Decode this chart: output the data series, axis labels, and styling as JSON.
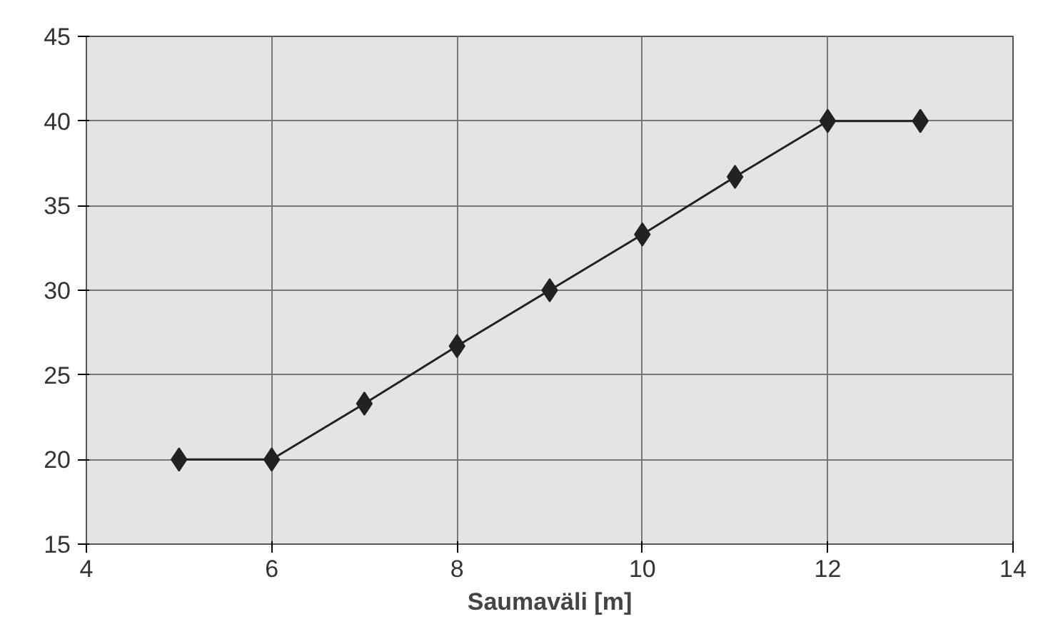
{
  "chart_data": {
    "type": "line",
    "xlabel": "Saumaväli [m]",
    "x": [
      5,
      6,
      7,
      8,
      9,
      10,
      11,
      12,
      13
    ],
    "series": [
      {
        "color": "#222222",
        "values": [
          20,
          20,
          23.3,
          26.7,
          30,
          33.3,
          36.7,
          40,
          40
        ]
      }
    ],
    "xlim": [
      4,
      14
    ],
    "xticks": [
      4,
      6,
      8,
      10,
      12,
      14
    ],
    "ylim": [
      15,
      45
    ],
    "yticks": [
      15,
      20,
      25,
      30,
      35,
      40,
      45
    ],
    "grid": true,
    "marker": "diamond",
    "line_style": "solid"
  }
}
